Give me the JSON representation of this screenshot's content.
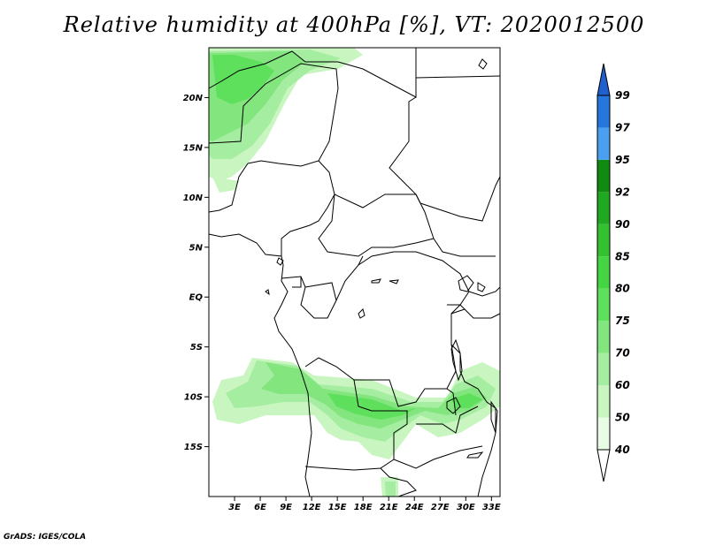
{
  "title": "Relative humidity at 400hPa [%], VT: 2020012500",
  "credit": "GrADS: IGES/COLA",
  "map": {
    "lon_range": [
      0,
      34
    ],
    "lat_range": [
      -20,
      25
    ],
    "lat_ticks": [
      {
        "value": 20,
        "label": "20N"
      },
      {
        "value": 15,
        "label": "15N"
      },
      {
        "value": 10,
        "label": "10N"
      },
      {
        "value": 5,
        "label": "5N"
      },
      {
        "value": 0,
        "label": "EQ"
      },
      {
        "value": -5,
        "label": "5S"
      },
      {
        "value": -10,
        "label": "10S"
      },
      {
        "value": -15,
        "label": "15S"
      }
    ],
    "lon_ticks": [
      {
        "value": 3,
        "label": "3E"
      },
      {
        "value": 6,
        "label": "6E"
      },
      {
        "value": 9,
        "label": "9E"
      },
      {
        "value": 12,
        "label": "12E"
      },
      {
        "value": 15,
        "label": "15E"
      },
      {
        "value": 18,
        "label": "18E"
      },
      {
        "value": 21,
        "label": "21E"
      },
      {
        "value": 24,
        "label": "24E"
      },
      {
        "value": 27,
        "label": "27E"
      },
      {
        "value": 30,
        "label": "30E"
      },
      {
        "value": 33,
        "label": "33E"
      }
    ]
  },
  "legend": {
    "levels": [
      "40",
      "50",
      "60",
      "70",
      "75",
      "80",
      "85",
      "90",
      "92",
      "95",
      "97",
      "99"
    ],
    "colors": [
      "#ffffff",
      "#e8fbe4",
      "#c8f5c0",
      "#a5eda0",
      "#82e57e",
      "#5ee05c",
      "#45d444",
      "#33c132",
      "#21a821",
      "#118a11",
      "#4aa0ee",
      "#2577de",
      "#1f5fce"
    ]
  },
  "humidity_fields": [
    {
      "region": "sahel-north",
      "max_level": "80"
    },
    {
      "region": "southern-band",
      "max_level": "80"
    }
  ]
}
